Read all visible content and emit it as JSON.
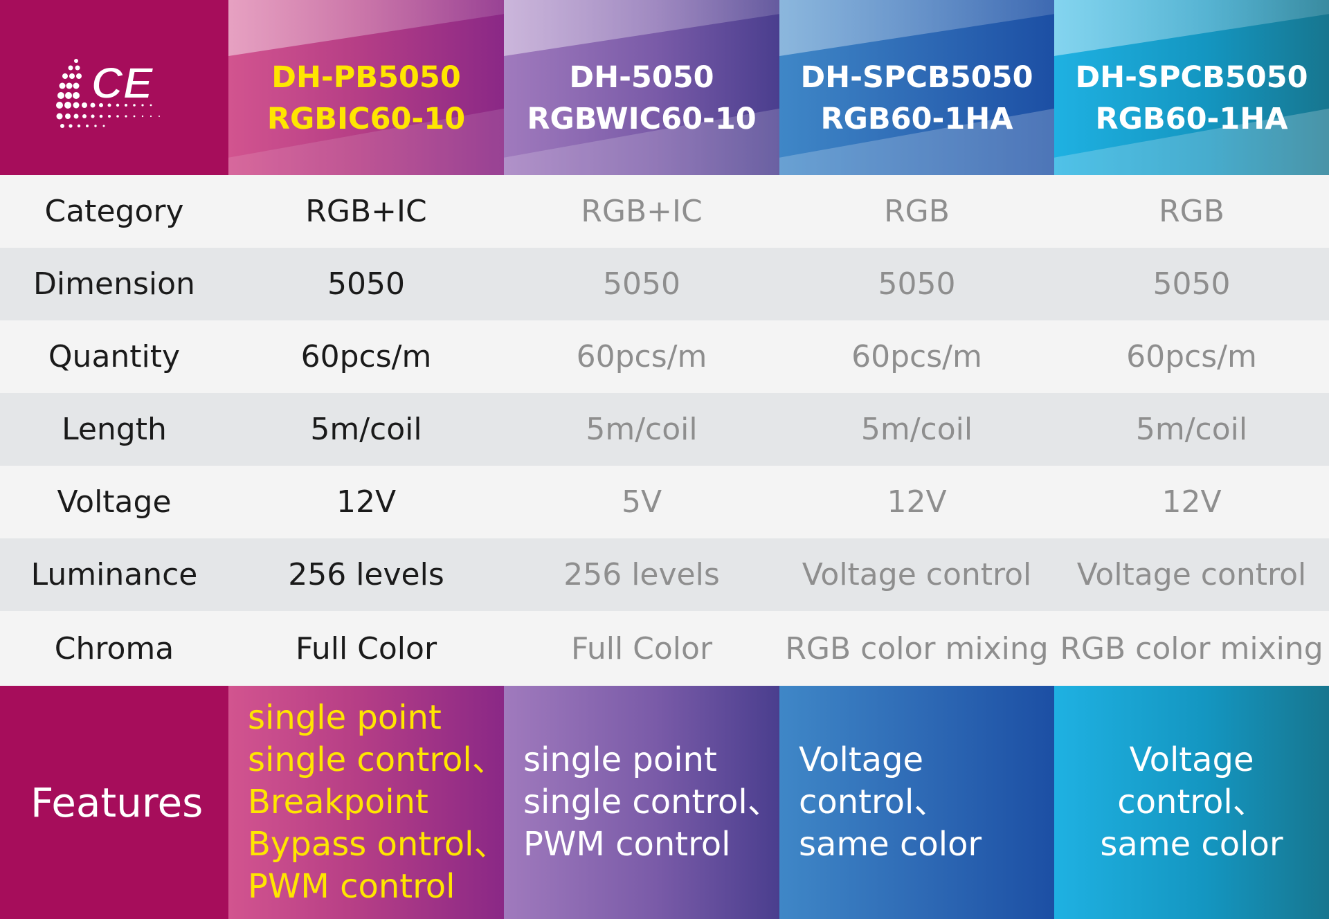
{
  "logo": {
    "text": "CE"
  },
  "products": [
    {
      "line1": "DH-PB5050",
      "line2": "RGBIC60-10"
    },
    {
      "line1": "DH-5050",
      "line2": "RGBWIC60-10"
    },
    {
      "line1": "DH-SPCB5050",
      "line2": "RGB60-1HA"
    },
    {
      "line1": "DH-SPCB5050",
      "line2": "RGB60-1HA"
    }
  ],
  "rows": [
    {
      "label": "Category",
      "values": [
        "RGB+IC",
        "RGB+IC",
        "RGB",
        "RGB"
      ]
    },
    {
      "label": "Dimension",
      "values": [
        "5050",
        "5050",
        "5050",
        "5050"
      ]
    },
    {
      "label": "Quantity",
      "values": [
        "60pcs/m",
        "60pcs/m",
        "60pcs/m",
        "60pcs/m"
      ]
    },
    {
      "label": "Length",
      "values": [
        "5m/coil",
        "5m/coil",
        "5m/coil",
        "5m/coil"
      ]
    },
    {
      "label": "Voltage",
      "values": [
        "12V",
        "5V",
        "12V",
        "12V"
      ]
    },
    {
      "label": "Luminance",
      "values": [
        "256 levels",
        "256 levels",
        "Voltage control",
        "Voltage control"
      ]
    },
    {
      "label": "Chroma",
      "values": [
        "Full Color",
        "Full Color",
        "RGB color mixing",
        "RGB color mixing"
      ]
    }
  ],
  "features": {
    "label": "Features",
    "values": [
      [
        "single point",
        "single control、",
        "Breakpoint",
        "Bypass ontrol、",
        "PWM control"
      ],
      [
        "single point",
        "single control、",
        "PWM control"
      ],
      [
        "Voltage",
        "control、",
        "same color"
      ],
      [
        "Voltage",
        "control、",
        "same color"
      ]
    ]
  },
  "colors": {
    "brand_magenta": "#a60d5b",
    "highlight_yellow": "#ffe600",
    "row_light": "#f4f4f4",
    "row_dark": "#e4e6e8",
    "text_dark": "#1a1a1a",
    "text_muted": "#8e8e8e"
  }
}
